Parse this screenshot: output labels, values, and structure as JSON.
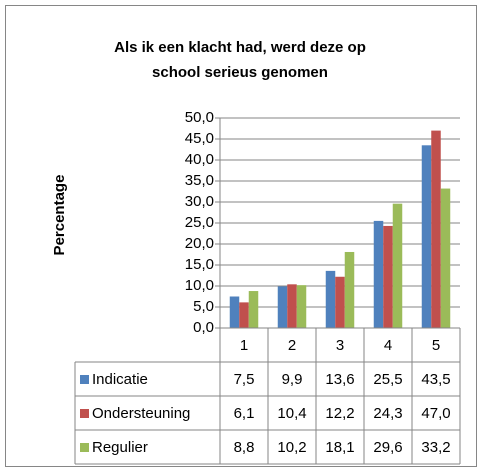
{
  "chart_data": {
    "type": "bar",
    "title": "Als ik een klacht had, werd deze op school serieus genomen",
    "y_label": "Percentage",
    "categories": [
      "1",
      "2",
      "3",
      "4",
      "5"
    ],
    "series": [
      {
        "name": "Indicatie",
        "color": "#4f81bd",
        "values": [
          7.5,
          9.9,
          13.6,
          25.5,
          43.5
        ],
        "value_labels": [
          "7,5",
          "9,9",
          "13,6",
          "25,5",
          "43,5"
        ]
      },
      {
        "name": "Ondersteuning",
        "color": "#c0504d",
        "values": [
          6.1,
          10.4,
          12.2,
          24.3,
          47.0
        ],
        "value_labels": [
          "6,1",
          "10,4",
          "12,2",
          "24,3",
          "47,0"
        ]
      },
      {
        "name": "Regulier",
        "color": "#9bbb59",
        "values": [
          8.8,
          10.2,
          18.1,
          29.6,
          33.2
        ],
        "value_labels": [
          "8,8",
          "10,2",
          "18,1",
          "29,6",
          "33,2"
        ]
      }
    ],
    "ylim": [
      0,
      50
    ],
    "yticks": [
      {
        "value": 0,
        "label": "0,0"
      },
      {
        "value": 5,
        "label": "5,0"
      },
      {
        "value": 10,
        "label": "10,0"
      },
      {
        "value": 15,
        "label": "15,0"
      },
      {
        "value": 20,
        "label": "20,0"
      },
      {
        "value": 25,
        "label": "25,0"
      },
      {
        "value": 30,
        "label": "30,0"
      },
      {
        "value": 35,
        "label": "35,0"
      },
      {
        "value": 40,
        "label": "40,0"
      },
      {
        "value": 45,
        "label": "45,0"
      },
      {
        "value": 50,
        "label": "50,0"
      }
    ],
    "grid": true
  }
}
